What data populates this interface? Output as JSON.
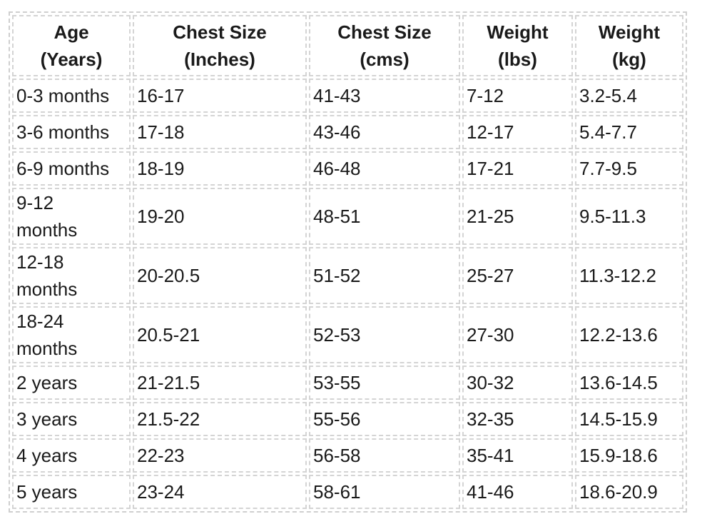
{
  "table": {
    "header": [
      [
        "Age",
        "(Years)"
      ],
      [
        "Chest Size",
        "(Inches)"
      ],
      [
        "Chest Size",
        "(cms)"
      ],
      [
        "Weight",
        "(lbs)"
      ],
      [
        "Weight",
        "(kg)"
      ]
    ],
    "rows": [
      [
        "0-3 months",
        "16-17",
        "41-43",
        "7-12",
        "3.2-5.4"
      ],
      [
        "3-6 months",
        "17-18",
        "43-46",
        "12-17",
        "5.4-7.7"
      ],
      [
        "6-9 months",
        "18-19",
        "46-48",
        "17-21",
        "7.7-9.5"
      ],
      [
        "9-12 months",
        "19-20",
        "48-51",
        "21-25",
        "9.5-11.3"
      ],
      [
        "12-18 months",
        "20-20.5",
        "51-52",
        "25-27",
        "11.3-12.2"
      ],
      [
        "18-24 months",
        "20.5-21",
        "52-53",
        "27-30",
        "12.2-13.6"
      ],
      [
        "2 years",
        "21-21.5",
        "53-55",
        "30-32",
        "13.6-14.5"
      ],
      [
        "3 years",
        "21.5-22",
        "55-56",
        "32-35",
        "14.5-15.9"
      ],
      [
        "4 years",
        "22-23",
        "56-58",
        "35-41",
        "15.9-18.6"
      ],
      [
        "5 years",
        "23-24",
        "58-61",
        "41-46",
        "18.6-20.9"
      ]
    ]
  }
}
